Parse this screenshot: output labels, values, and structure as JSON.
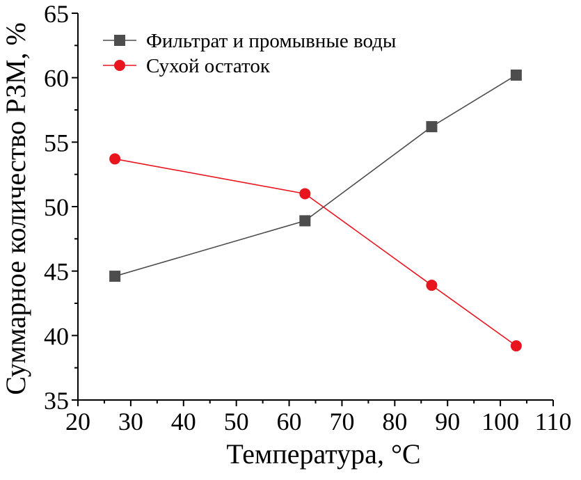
{
  "chart_data": {
    "type": "line",
    "xlabel": "Температура, °C",
    "ylabel": "Суммарное количество РЗМ, %",
    "xlim": [
      20,
      110
    ],
    "ylim": [
      35,
      65
    ],
    "x_ticks": [
      "20",
      "30",
      "40",
      "50",
      "60",
      "70",
      "80",
      "90",
      "100",
      "110"
    ],
    "y_ticks": [
      "35",
      "40",
      "45",
      "50",
      "55",
      "60",
      "65"
    ],
    "legend_position": "top-left",
    "series": [
      {
        "name": "Фильтрат и промывные воды",
        "marker": "square",
        "color": "#4d4d4d",
        "x": [
          27,
          63,
          87,
          103
        ],
        "y": [
          44.6,
          48.9,
          56.2,
          60.2
        ]
      },
      {
        "name": "Сухой остаток",
        "marker": "circle",
        "color": "#e8141e",
        "x": [
          27,
          63,
          87,
          103
        ],
        "y": [
          53.7,
          51.0,
          43.9,
          39.2
        ]
      }
    ]
  }
}
